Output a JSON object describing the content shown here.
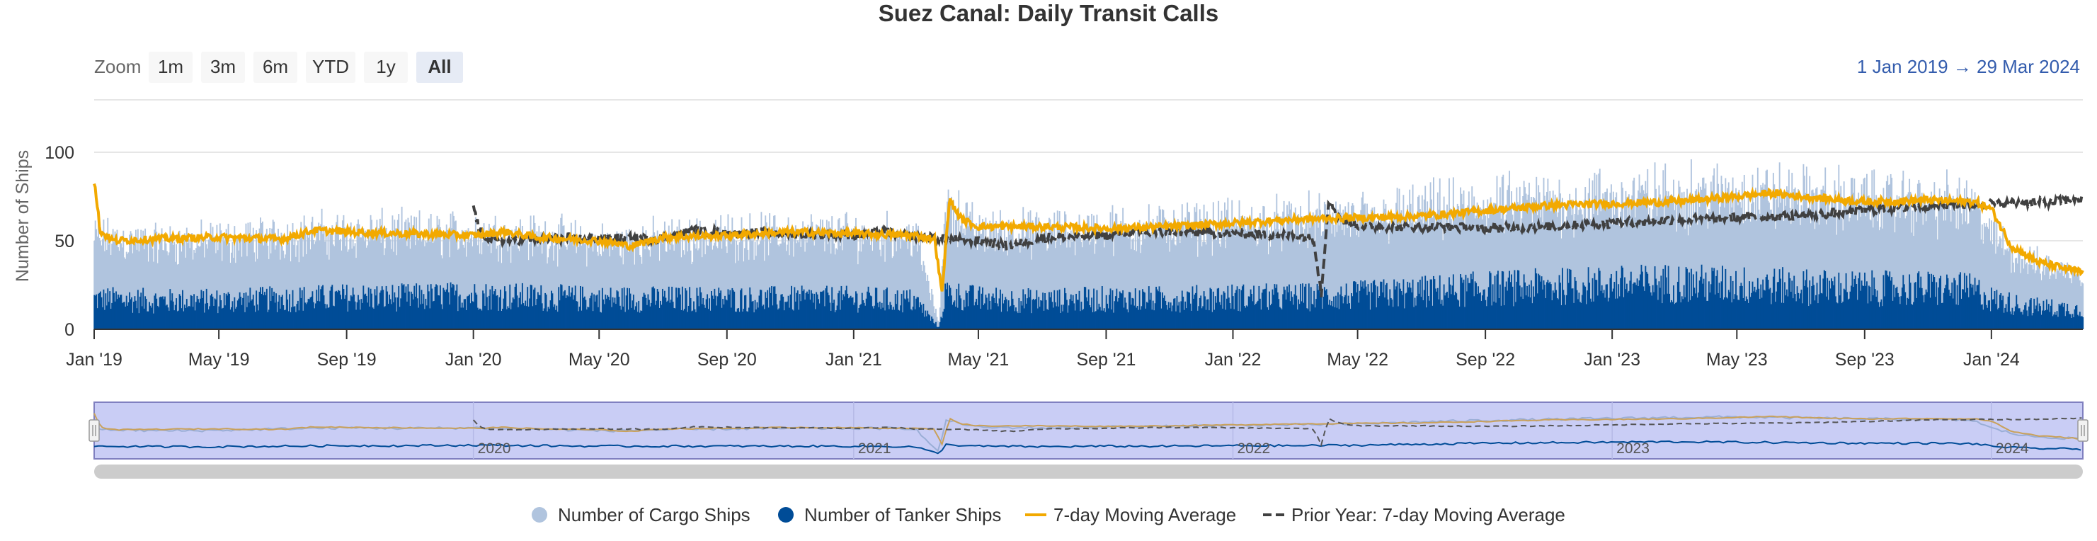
{
  "chart_data": {
    "type": "bar",
    "title": "Suez Canal: Daily Transit Calls",
    "ylabel": "Number of Ships",
    "ylim": [
      0,
      110
    ],
    "y_ticks": [
      {
        "value": 0,
        "label": "0"
      },
      {
        "value": 50,
        "label": "50"
      },
      {
        "value": 100,
        "label": "100"
      }
    ],
    "x_range": [
      "2019-01-01",
      "2024-03-29"
    ],
    "x_ticks": [
      {
        "date": "2019-01-01",
        "label": "Jan '19"
      },
      {
        "date": "2019-05-01",
        "label": "May '19"
      },
      {
        "date": "2019-09-01",
        "label": "Sep '19"
      },
      {
        "date": "2020-01-01",
        "label": "Jan '20"
      },
      {
        "date": "2020-05-01",
        "label": "May '20"
      },
      {
        "date": "2020-09-01",
        "label": "Sep '20"
      },
      {
        "date": "2021-01-01",
        "label": "Jan '21"
      },
      {
        "date": "2021-05-01",
        "label": "May '21"
      },
      {
        "date": "2021-09-01",
        "label": "Sep '21"
      },
      {
        "date": "2022-01-01",
        "label": "Jan '22"
      },
      {
        "date": "2022-05-01",
        "label": "May '22"
      },
      {
        "date": "2022-09-01",
        "label": "Sep '22"
      },
      {
        "date": "2023-01-01",
        "label": "Jan '23"
      },
      {
        "date": "2023-05-01",
        "label": "May '23"
      },
      {
        "date": "2023-09-01",
        "label": "Sep '23"
      },
      {
        "date": "2024-01-01",
        "label": "Jan '24"
      }
    ],
    "navigator_ticks": [
      {
        "date": "2020-01-01",
        "label": "2020"
      },
      {
        "date": "2021-01-01",
        "label": "2021"
      },
      {
        "date": "2022-01-01",
        "label": "2022"
      },
      {
        "date": "2023-01-01",
        "label": "2023"
      },
      {
        "date": "2024-01-01",
        "label": "2024"
      }
    ],
    "series": [
      {
        "name": "Number of Cargo Ships",
        "type": "column",
        "stacked": true,
        "color": "#b0c4de",
        "x": [
          "2019-01-01",
          "2019-03-01",
          "2019-05-01",
          "2019-07-01",
          "2019-09-01",
          "2019-11-01",
          "2020-01-01",
          "2020-03-01",
          "2020-05-01",
          "2020-07-01",
          "2020-09-01",
          "2020-11-01",
          "2021-01-01",
          "2021-03-01",
          "2021-03-24",
          "2021-03-30",
          "2021-05-01",
          "2021-07-01",
          "2021-09-01",
          "2021-11-01",
          "2022-01-01",
          "2022-03-01",
          "2022-05-01",
          "2022-07-01",
          "2022-09-01",
          "2022-11-01",
          "2023-01-01",
          "2023-03-01",
          "2023-05-01",
          "2023-07-01",
          "2023-09-01",
          "2023-11-01",
          "2023-12-15",
          "2024-01-01",
          "2024-02-01",
          "2024-03-29"
        ],
        "values": [
          34,
          32,
          33,
          35,
          36,
          35,
          35,
          34,
          31,
          33,
          35,
          36,
          36,
          37,
          2,
          50,
          38,
          38,
          39,
          40,
          41,
          42,
          43,
          45,
          46,
          47,
          48,
          49,
          51,
          50,
          49,
          48,
          47,
          36,
          25,
          20
        ]
      },
      {
        "name": "Number of Tanker Ships",
        "type": "column",
        "stacked": true,
        "color": "#004c97",
        "x": [
          "2019-01-01",
          "2019-03-01",
          "2019-05-01",
          "2019-07-01",
          "2019-09-01",
          "2019-11-01",
          "2020-01-01",
          "2020-03-01",
          "2020-05-01",
          "2020-07-01",
          "2020-09-01",
          "2020-11-01",
          "2021-01-01",
          "2021-03-01",
          "2021-03-24",
          "2021-03-30",
          "2021-05-01",
          "2021-07-01",
          "2021-09-01",
          "2021-11-01",
          "2022-01-01",
          "2022-03-01",
          "2022-05-01",
          "2022-07-01",
          "2022-09-01",
          "2022-11-01",
          "2023-01-01",
          "2023-03-01",
          "2023-05-01",
          "2023-07-01",
          "2023-09-01",
          "2023-11-01",
          "2023-12-15",
          "2024-01-01",
          "2024-02-01",
          "2024-03-29"
        ],
        "values": [
          17,
          16,
          16,
          17,
          18,
          18,
          19,
          18,
          17,
          17,
          17,
          17,
          17,
          16,
          1,
          20,
          17,
          16,
          17,
          17,
          18,
          18,
          19,
          21,
          23,
          24,
          25,
          26,
          25,
          24,
          23,
          23,
          22,
          17,
          13,
          11
        ]
      },
      {
        "name": "7-day Moving Average",
        "type": "line",
        "color": "#f2a900",
        "x": [
          "2019-01-01",
          "2019-01-07",
          "2019-01-20",
          "2019-03-01",
          "2019-05-01",
          "2019-07-01",
          "2019-08-01",
          "2019-09-01",
          "2019-11-01",
          "2020-01-01",
          "2020-02-01",
          "2020-03-01",
          "2020-05-01",
          "2020-06-01",
          "2020-07-01",
          "2020-09-01",
          "2020-11-01",
          "2021-01-01",
          "2021-03-01",
          "2021-03-20",
          "2021-03-27",
          "2021-04-03",
          "2021-04-15",
          "2021-05-01",
          "2021-07-01",
          "2021-09-01",
          "2021-11-01",
          "2022-01-01",
          "2022-03-01",
          "2022-05-01",
          "2022-07-01",
          "2022-09-01",
          "2022-11-01",
          "2023-01-01",
          "2023-03-01",
          "2023-05-01",
          "2023-06-01",
          "2023-07-01",
          "2023-09-01",
          "2023-11-01",
          "2023-12-15",
          "2024-01-01",
          "2024-01-20",
          "2024-02-15",
          "2024-03-29"
        ],
        "values": [
          84,
          55,
          50,
          51,
          52,
          51,
          56,
          55,
          54,
          53,
          55,
          52,
          50,
          47,
          52,
          53,
          55,
          54,
          53,
          51,
          20,
          73,
          62,
          58,
          58,
          57,
          58,
          60,
          62,
          63,
          64,
          67,
          70,
          71,
          72,
          75,
          77,
          75,
          72,
          73,
          72,
          68,
          47,
          38,
          32
        ]
      },
      {
        "name": "Prior Year: 7-day Moving Average",
        "type": "line",
        "dashed": true,
        "color": "#404040",
        "x": [
          "2020-01-01",
          "2020-01-07",
          "2020-01-20",
          "2020-03-01",
          "2020-05-01",
          "2020-07-01",
          "2020-08-01",
          "2020-09-01",
          "2020-11-01",
          "2021-01-01",
          "2021-02-01",
          "2021-03-01",
          "2021-05-01",
          "2021-06-01",
          "2021-07-01",
          "2021-09-01",
          "2021-11-01",
          "2022-01-01",
          "2022-03-01",
          "2022-03-20",
          "2022-03-27",
          "2022-04-03",
          "2022-04-15",
          "2022-05-01",
          "2022-07-01",
          "2022-09-01",
          "2022-11-01",
          "2023-01-01",
          "2023-03-01",
          "2023-05-01",
          "2023-07-01",
          "2023-09-01",
          "2023-11-01",
          "2024-01-01",
          "2024-03-01",
          "2024-03-29"
        ],
        "values": [
          70,
          55,
          50,
          51,
          52,
          51,
          56,
          55,
          54,
          53,
          55,
          52,
          50,
          47,
          52,
          53,
          55,
          54,
          53,
          51,
          20,
          73,
          62,
          58,
          58,
          57,
          58,
          60,
          62,
          63,
          64,
          67,
          70,
          71,
          72,
          74
        ]
      }
    ]
  },
  "zoom": {
    "label": "Zoom",
    "buttons": [
      {
        "label": "1m"
      },
      {
        "label": "3m"
      },
      {
        "label": "6m"
      },
      {
        "label": "YTD"
      },
      {
        "label": "1y"
      },
      {
        "label": "All",
        "active": true
      }
    ]
  },
  "range": {
    "from": "1 Jan 2019",
    "arrow": "→",
    "to": "29 Mar 2024"
  },
  "legend": [
    {
      "label": "Number of Cargo Ships",
      "symbol": "circle",
      "color": "#b0c4de"
    },
    {
      "label": "Number of Tanker Ships",
      "symbol": "circle",
      "color": "#004c97"
    },
    {
      "label": "7-day Moving Average",
      "symbol": "line",
      "color": "#f2a900"
    },
    {
      "label": "Prior Year: 7-day Moving Average",
      "symbol": "dash",
      "color": "#404040"
    }
  ],
  "colors": {
    "navigator_mask": "#c9cdf5",
    "navigator_border": "#8080c0",
    "active_button": "#e6ebf5",
    "button": "#f7f7f7",
    "grid": "#e6e6e6",
    "scrollbar": "#cccccc"
  }
}
